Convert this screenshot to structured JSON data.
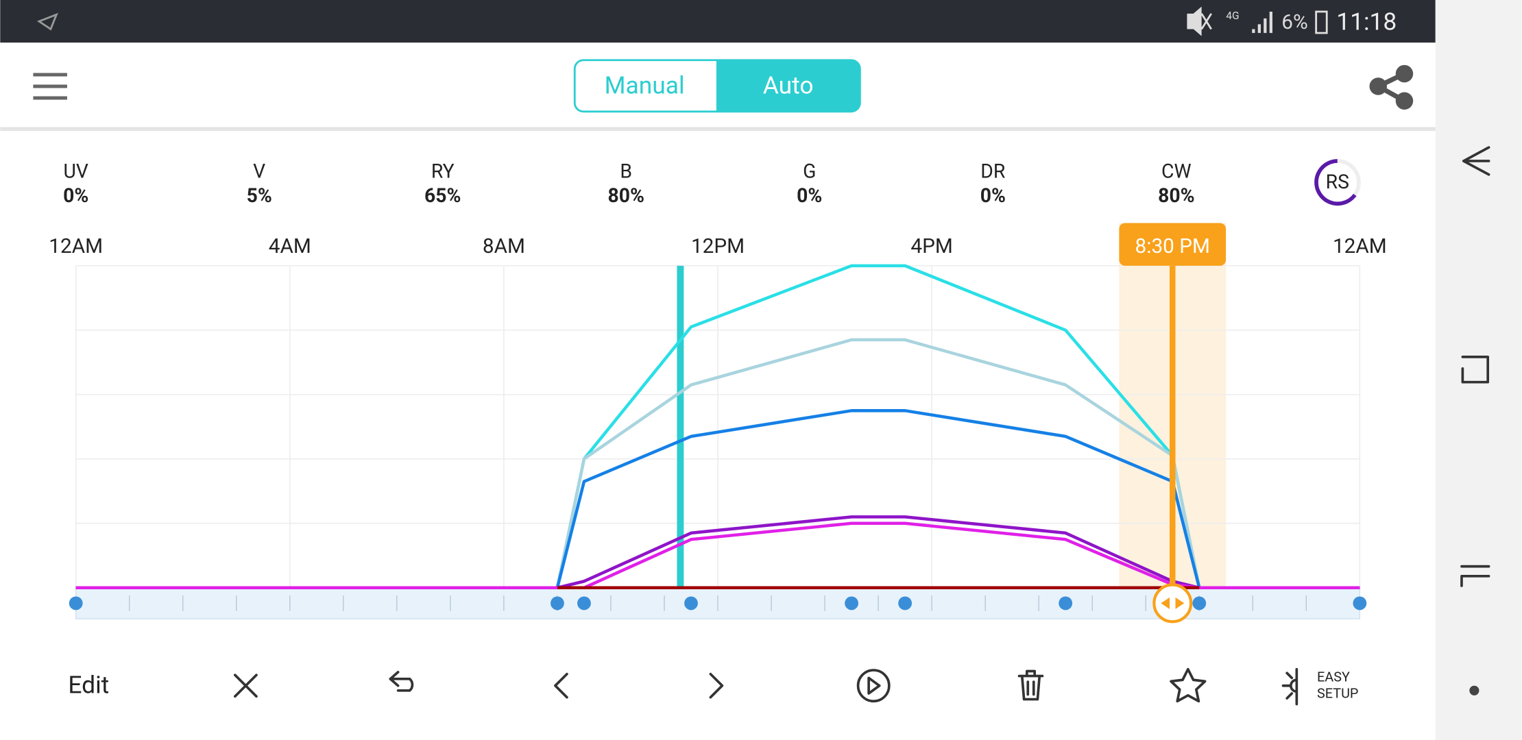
{
  "status_bar": {
    "network": "4G",
    "battery": "6%",
    "time": "11:18"
  },
  "header": {
    "modes": [
      "Manual",
      "Auto"
    ]
  },
  "channels": [
    {
      "name": "UV",
      "level": "0%"
    },
    {
      "name": "V",
      "level": "5%"
    },
    {
      "name": "RY",
      "level": "65%"
    },
    {
      "name": "B",
      "level": "80%"
    },
    {
      "name": "G",
      "level": "0%"
    },
    {
      "name": "DR",
      "level": "0%"
    },
    {
      "name": "CW",
      "level": "80%"
    }
  ],
  "rs_label": "RS",
  "chart_data": {
    "type": "line",
    "x": [
      0,
      9,
      9.5,
      11.5,
      14.5,
      15.5,
      18.5,
      20.5,
      21,
      24
    ],
    "xlim": [
      0,
      24
    ],
    "xticks": [
      {
        "value": 0,
        "label": "12AM"
      },
      {
        "value": 4,
        "label": "4AM"
      },
      {
        "value": 8,
        "label": "8AM"
      },
      {
        "value": 12,
        "label": "12PM"
      },
      {
        "value": 16,
        "label": "4PM"
      },
      {
        "value": 24,
        "label": "12AM"
      }
    ],
    "ylim": [
      0,
      100
    ],
    "yticks": [
      0,
      20,
      40,
      60,
      80,
      100
    ],
    "grid": true,
    "now_x": 11.3,
    "cursor": {
      "x": 20.5,
      "label": "8:30 PM",
      "color": "#f9a11b"
    },
    "series": [
      {
        "color": "#2adfe6",
        "values": [
          0,
          0,
          40,
          81,
          100,
          100,
          80,
          41,
          0,
          0
        ]
      },
      {
        "color": "#a8d4de",
        "values": [
          0,
          0,
          40,
          63,
          77,
          77,
          63,
          41,
          0,
          0
        ]
      },
      {
        "color": "#1580e6",
        "values": [
          0,
          0,
          33,
          47,
          55,
          55,
          47,
          33,
          0,
          0
        ]
      },
      {
        "color": "#8e14c8",
        "values": [
          0,
          0,
          2,
          17,
          22,
          22,
          17,
          2,
          0,
          0
        ]
      },
      {
        "color": "#e020e8",
        "values": [
          0,
          0,
          0,
          15,
          20,
          20,
          15,
          1,
          0,
          0
        ]
      },
      {
        "color": "#a00000",
        "values": [
          null,
          0,
          0,
          0,
          0,
          0,
          0,
          0,
          0,
          null
        ]
      }
    ]
  },
  "toolbar": {
    "edit": "Edit",
    "easy_setup": [
      "EASY",
      "SETUP"
    ]
  }
}
